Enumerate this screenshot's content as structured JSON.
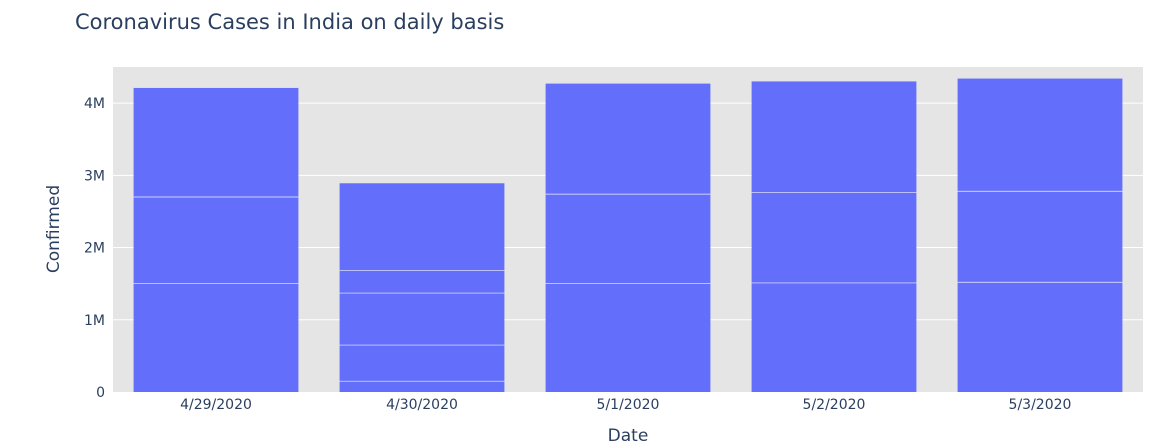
{
  "chart_data": {
    "type": "bar",
    "title": "Coronavirus Cases in India on daily basis",
    "xlabel": "Date",
    "ylabel": "Confirmed",
    "categories": [
      "4/29/2020",
      "4/30/2020",
      "5/1/2020",
      "5/2/2020",
      "5/3/2020"
    ],
    "values": [
      4210000,
      2890000,
      4270000,
      4300000,
      4340000
    ],
    "segment_boundaries": [
      [
        1500000,
        2700000
      ],
      [
        150000,
        650000,
        1370000,
        1680000
      ],
      [
        1500000,
        2740000
      ],
      [
        1510000,
        2760000
      ],
      [
        1520000,
        2780000
      ]
    ],
    "ylim": [
      0,
      4500000
    ],
    "yticks": [
      {
        "value": 0,
        "label": "0"
      },
      {
        "value": 1000000,
        "label": "1M"
      },
      {
        "value": 2000000,
        "label": "2M"
      },
      {
        "value": 3000000,
        "label": "3M"
      },
      {
        "value": 4000000,
        "label": "4M"
      }
    ],
    "grid": true,
    "colors": {
      "bar": "#636efa",
      "plot_bg": "#e5e5e5",
      "grid": "#ffffff",
      "text": "#2a3f5f"
    }
  }
}
